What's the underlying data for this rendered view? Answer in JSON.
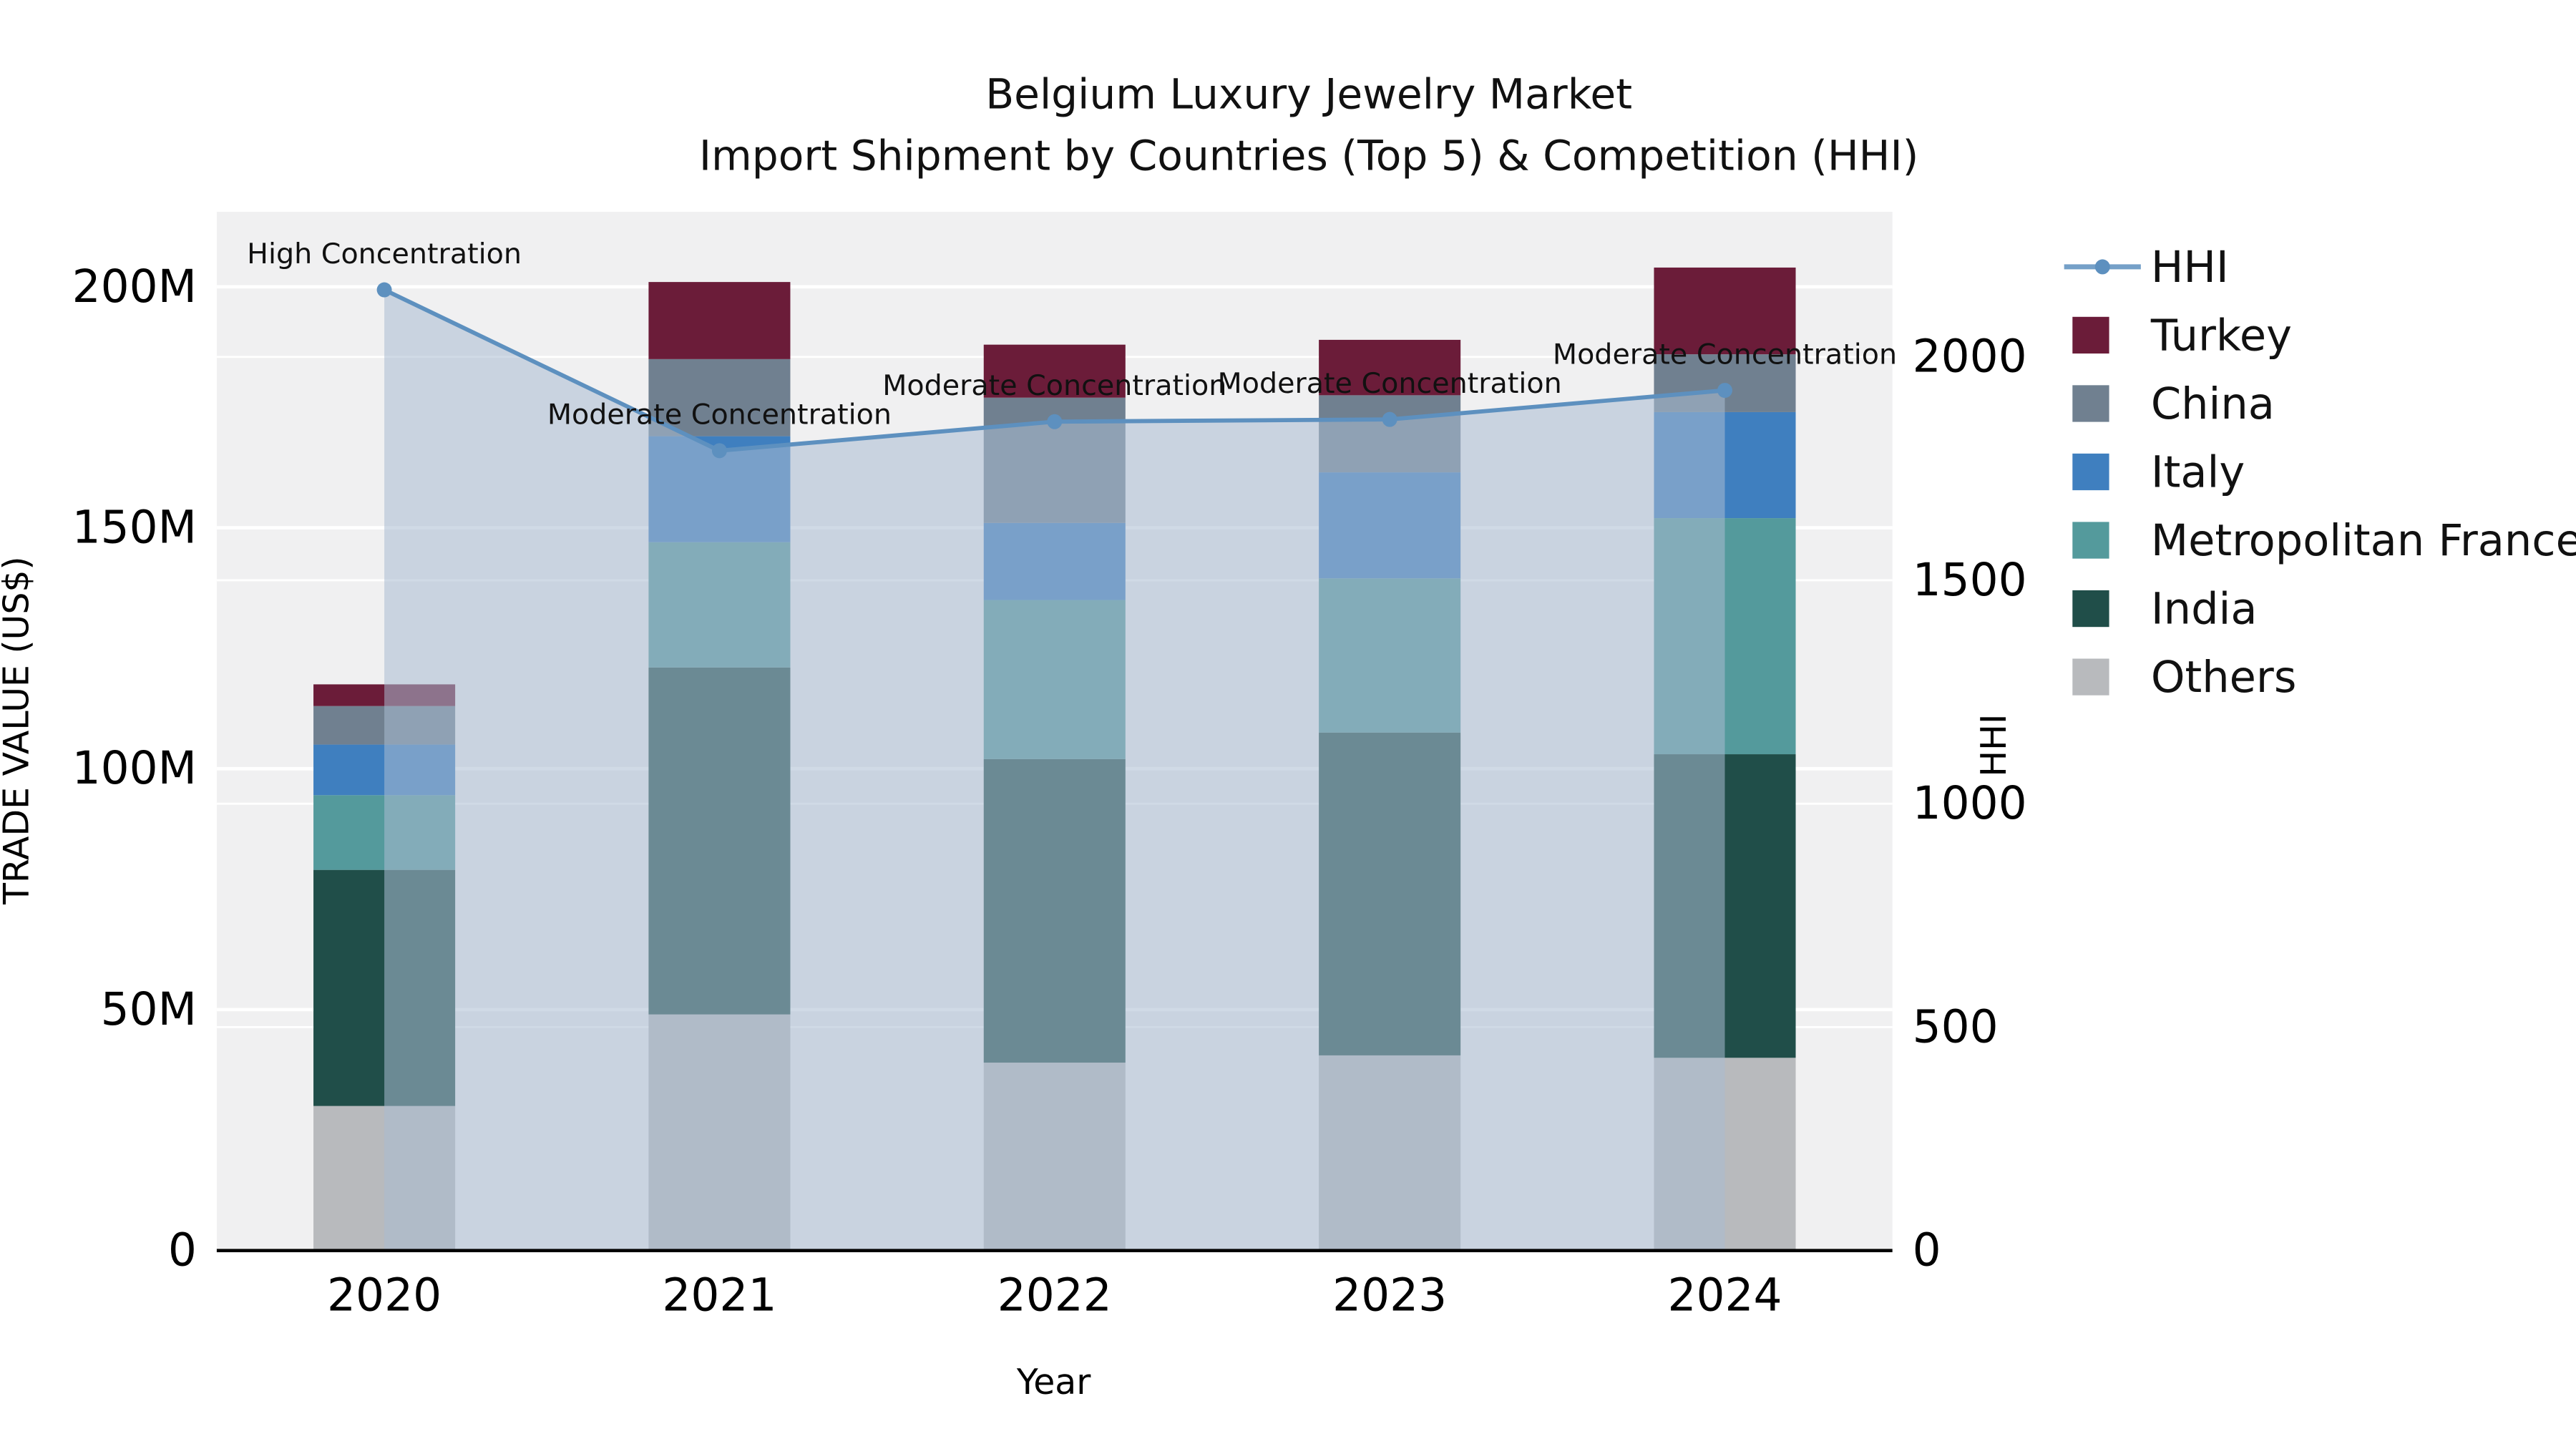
{
  "page": {
    "background": "#ffffff"
  },
  "chart_data": {
    "type": "bar",
    "stacked": true,
    "title_line1": "Belgium Luxury Jewelry Market",
    "title_line2": "Import Shipment by Countries (Top 5) & Competition (HHI)",
    "xlabel": "Year",
    "ylabel_left": "TRADE VALUE (US$)",
    "ylabel_right": "HHI",
    "plot_bg": "#f0f0f1",
    "grid": true,
    "legend_position": "right-top",
    "categories": [
      "2020",
      "2021",
      "2022",
      "2023",
      "2024"
    ],
    "value_unit": "million US$",
    "series": [
      {
        "name": "Others",
        "color": "#b8babd",
        "values": [
          30,
          49,
          39,
          40.5,
          40
        ]
      },
      {
        "name": "India",
        "color": "#204e49",
        "values": [
          49,
          72,
          63,
          67,
          63
        ]
      },
      {
        "name": "Metropolitan France",
        "color": "#549a9c",
        "values": [
          15.5,
          26,
          33,
          32,
          49
        ]
      },
      {
        "name": "Italy",
        "color": "#3f7fbf",
        "values": [
          10.5,
          22,
          16,
          22,
          22
        ]
      },
      {
        "name": "China",
        "color": "#708090",
        "values": [
          8,
          16,
          26,
          16,
          12
        ]
      },
      {
        "name": "Turkey",
        "color": "#6b1c39",
        "values": [
          4.5,
          16,
          11,
          11.5,
          18
        ]
      }
    ],
    "bar_totals": [
      117.5,
      201,
      188,
      189,
      204
    ],
    "line_series": {
      "name": "HHI",
      "color": "#5d90bf",
      "area_fill": "rgba(170,188,210,0.55)",
      "values": [
        2150,
        1790,
        1855,
        1860,
        1925
      ]
    },
    "annotations": [
      {
        "x": "2020",
        "text": "High Concentration"
      },
      {
        "x": "2021",
        "text": "Moderate Concentration"
      },
      {
        "x": "2022",
        "text": "Moderate Concentration"
      },
      {
        "x": "2023",
        "text": "Moderate Concentration"
      },
      {
        "x": "2024",
        "text": "Moderate Concentration"
      }
    ],
    "left_axis": {
      "ticks": [
        "0",
        "50M",
        "100M",
        "150M",
        "200M"
      ],
      "tick_values": [
        0,
        50,
        100,
        150,
        200
      ],
      "ylim": [
        0,
        216
      ]
    },
    "right_axis": {
      "ticks": [
        "0",
        "500",
        "1000",
        "1500",
        "2000"
      ],
      "tick_values": [
        0,
        500,
        1000,
        1500,
        2000
      ],
      "ylim": [
        0,
        2325
      ]
    },
    "legend_order": [
      "HHI",
      "Turkey",
      "China",
      "Italy",
      "Metropolitan France",
      "India",
      "Others"
    ]
  }
}
